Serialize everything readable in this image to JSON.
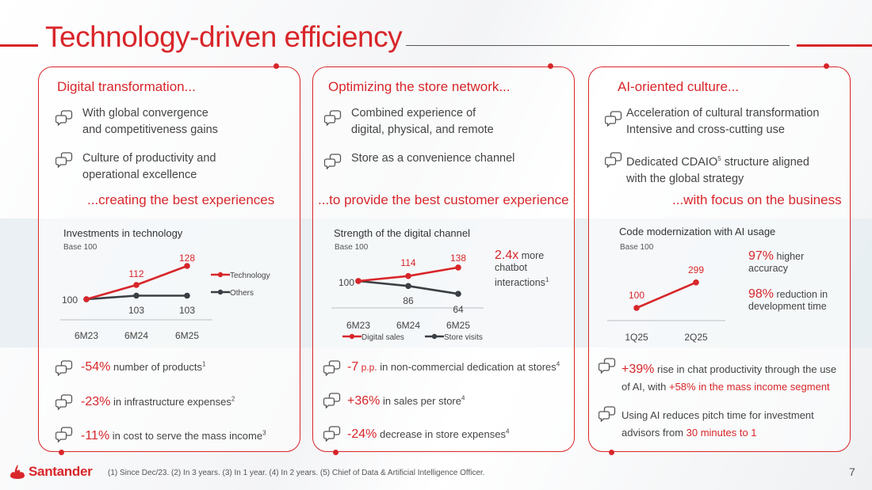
{
  "title": "Technology-driven efficiency",
  "colors": {
    "accent": "#d8262a",
    "grey_line": "#3a3f44",
    "band": "#e6edf1"
  },
  "cards": [
    {
      "title": "Digital transformation...",
      "bullets": [
        {
          "line1": "With global convergence",
          "line2": "and competitiveness gains",
          "icon": "chat-bubbles-icon"
        },
        {
          "line1": "Culture of productivity and",
          "line2": "operational excellence",
          "icon": "chat-bubbles-icon"
        }
      ],
      "tagline": "...creating the best experiences",
      "chart_title": "Investments in technology",
      "base_label": "Base 100",
      "kpis": [
        {
          "value": "-54%",
          "text": " number of products",
          "sup": "1"
        },
        {
          "value": "-23%",
          "text": " in infrastructure expenses",
          "sup": "2"
        },
        {
          "value": "-11%",
          "text": " in cost to serve the mass income",
          "sup": "3"
        }
      ]
    },
    {
      "title": "Optimizing the store network...",
      "bullets": [
        {
          "line1": "Combined experience of",
          "line2": "digital, physical, and remote",
          "icon": "chat-bubbles-icon"
        },
        {
          "line1": "Store as a convenience channel",
          "line2": "",
          "icon": "chat-bubbles-icon"
        }
      ],
      "tagline": "...to provide the best customer experience",
      "chart_title": "Strength of the digital channel",
      "base_label": "Base 100",
      "stat": {
        "value": "2.4x",
        "text1": " more",
        "text2": "chatbot",
        "text3": "interactions",
        "sup": "1"
      },
      "kpis": [
        {
          "value": "-7",
          "unit": " p.p.",
          "text": " in non-commercial dedication at stores",
          "sup": "4"
        },
        {
          "value": "+36%",
          "text": " in sales per store",
          "sup": "4"
        },
        {
          "value": "-24%",
          "text": " decrease in store expenses",
          "sup": "4"
        }
      ]
    },
    {
      "title": "AI-oriented culture...",
      "bullets": [
        {
          "line1": "Acceleration of cultural transformation",
          "line2": "Intensive and cross-cutting use",
          "icon": "chat-bubbles-icon"
        },
        {
          "line1": "Dedicated CDAIO",
          "sup": "5",
          "line1b": " structure aligned",
          "line2": "with the global strategy",
          "icon": "chat-bubbles-icon"
        }
      ],
      "tagline": "...with focus on the business",
      "chart_title": "Code modernization with AI usage",
      "base_label": "Base 100",
      "stats": [
        {
          "value": "97%",
          "text1": " higher",
          "text2": "accuracy"
        },
        {
          "value": "98%",
          "text1": " reduction in",
          "text2": "development time"
        }
      ],
      "kpis": [
        {
          "value": "+39%",
          "text1": " rise in chat productivity through the use",
          "text2a": "of AI, with ",
          "text2b": "+58% in the mass income segment"
        },
        {
          "text1": "Using AI reduces pitch time for investment",
          "text2a": "advisors from  ",
          "text2b": "30 minutes to 1"
        }
      ]
    }
  ],
  "chart_data": [
    {
      "type": "line",
      "title": "Investments in technology",
      "subtitle": "Base 100",
      "categories": [
        "6M23",
        "6M24",
        "6M25"
      ],
      "series": [
        {
          "name": "Technology",
          "values": [
            100,
            112,
            128
          ],
          "color": "#d8262a"
        },
        {
          "name": "Others",
          "values": [
            100,
            103,
            103
          ],
          "color": "#3a3f44"
        }
      ],
      "labels": [
        "100",
        "112",
        "128",
        "103",
        "103"
      ],
      "legend": "right"
    },
    {
      "type": "line",
      "title": "Strength of the digital channel",
      "subtitle": "Base 100",
      "categories": [
        "6M23",
        "6M24",
        "6M25"
      ],
      "series": [
        {
          "name": "Digital sales",
          "values": [
            100,
            114,
            138
          ],
          "color": "#d8262a"
        },
        {
          "name": "Store visits",
          "values": [
            100,
            86,
            64
          ],
          "color": "#3a3f44"
        }
      ],
      "labels": [
        "100",
        "114",
        "138",
        "86",
        "64"
      ],
      "legend": "bottom"
    },
    {
      "type": "line",
      "title": "Code modernization with AI usage",
      "subtitle": "Base 100",
      "categories": [
        "1Q25",
        "2Q25"
      ],
      "series": [
        {
          "name": "",
          "values": [
            100,
            299
          ],
          "color": "#d8262a"
        }
      ],
      "labels": [
        "100",
        "299"
      ]
    }
  ],
  "footer": {
    "brand": "Santander",
    "footnote": "(1) Since Dec/23. (2) In 3 years. (3) In 1 year. (4) In 2 years. (5) Chief of Data & Artificial Intelligence Officer.",
    "page": "7"
  }
}
